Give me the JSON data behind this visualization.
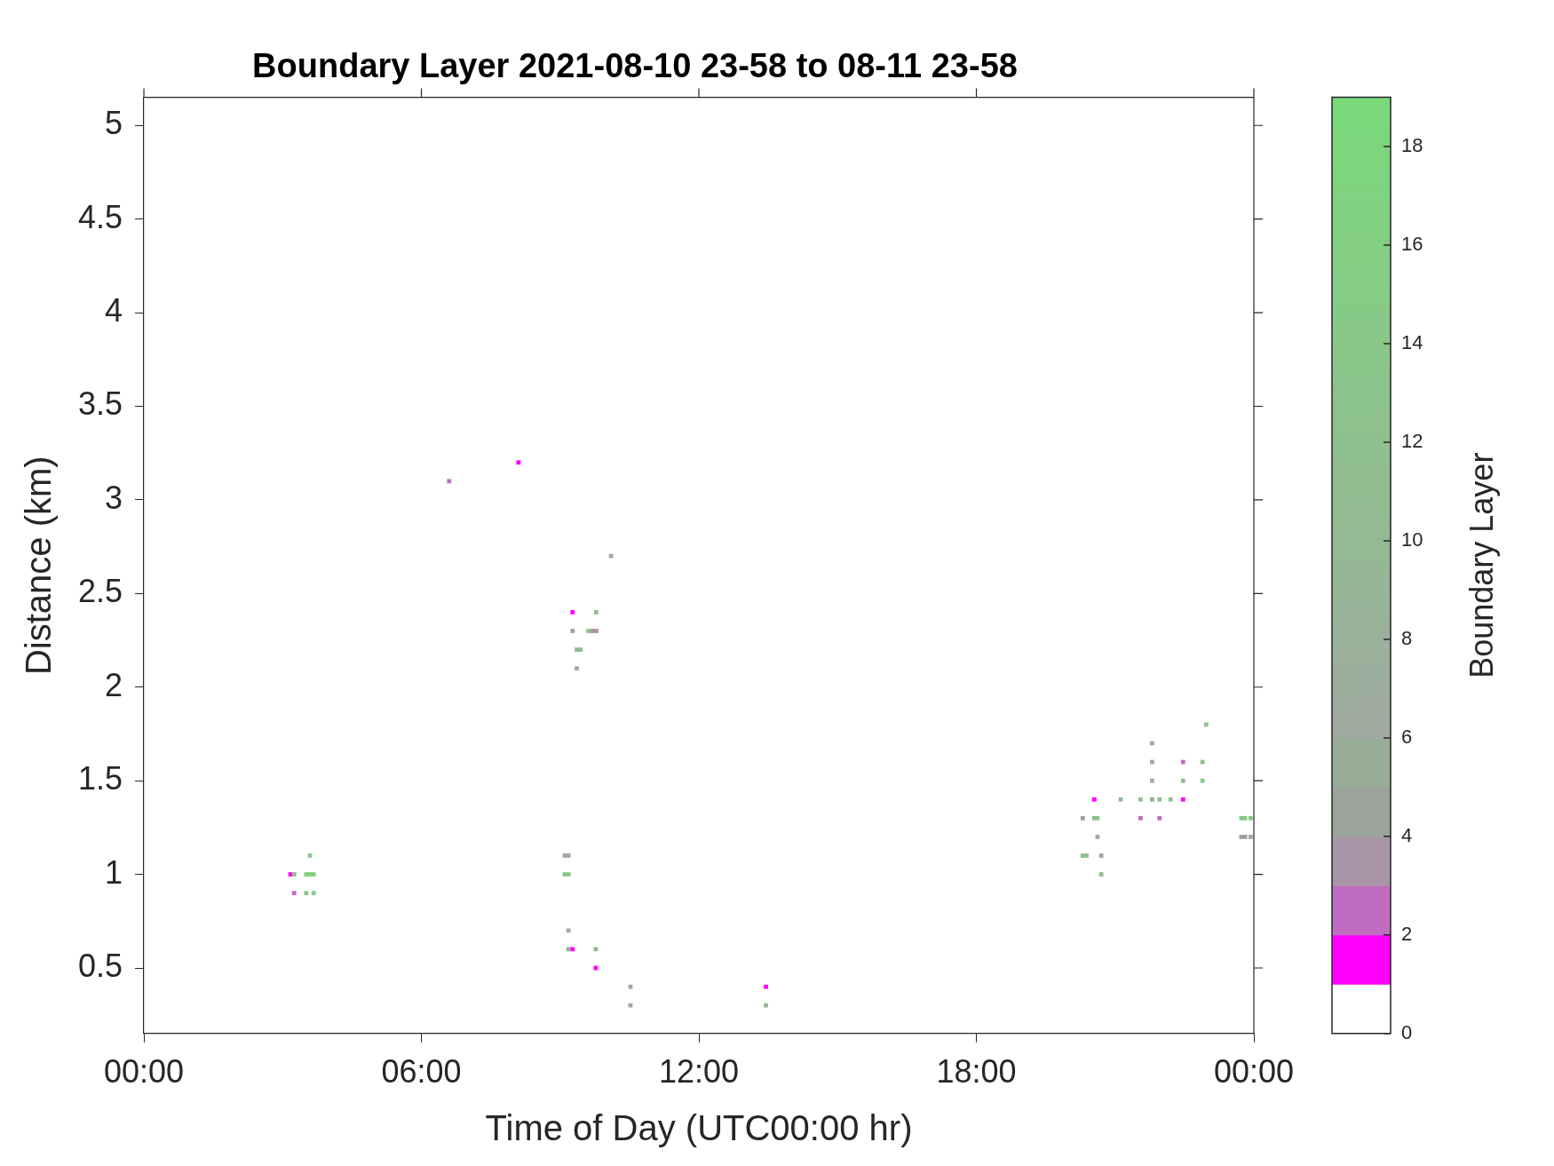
{
  "chart_data": {
    "type": "scatter",
    "title": "Boundary Layer 2021-08-10 23-58 to 08-11 23-58",
    "xlabel": "Time of Day (UTC00:00 hr)",
    "ylabel": "Distance (km)",
    "clabel": "Boundary Layer",
    "marker": "square",
    "grid": false,
    "legend": false,
    "xlim": [
      0,
      24
    ],
    "xticks": [
      {
        "value": 0,
        "label": "00:00"
      },
      {
        "value": 6,
        "label": "06:00"
      },
      {
        "value": 12,
        "label": "12:00"
      },
      {
        "value": 18,
        "label": "18:00"
      },
      {
        "value": 24,
        "label": "00:00"
      }
    ],
    "ylim": [
      0.15,
      5.15
    ],
    "yticks": [
      0.5,
      1,
      1.5,
      2,
      2.5,
      3,
      3.5,
      4,
      4.5,
      5
    ],
    "clim": [
      0,
      19
    ],
    "cticks": [
      0,
      2,
      4,
      6,
      8,
      10,
      12,
      14,
      16,
      18
    ],
    "series": [
      {
        "x": [
          3.17,
          3.25,
          3.25,
          3.51,
          3.51,
          3.59,
          3.59,
          3.67,
          3.67,
          6.6,
          8.1,
          10.1,
          9.27,
          9.27,
          9.36,
          9.44,
          9.36,
          9.61,
          9.7,
          9.78,
          9.78,
          9.1,
          9.18,
          9.1,
          9.18,
          9.18,
          9.18,
          9.27,
          9.77,
          9.77,
          10.52,
          10.52,
          13.45,
          13.45,
          20.3,
          20.3,
          20.38,
          20.55,
          20.55,
          20.62,
          20.62,
          20.7,
          20.7,
          21.12,
          21.55,
          21.55,
          21.8,
          21.8,
          21.8,
          21.8,
          21.96,
          21.96,
          22.2,
          22.47,
          22.47,
          22.47,
          22.89,
          22.89,
          22.97,
          23.73,
          23.73,
          23.81,
          23.81,
          23.93,
          23.93
        ],
        "values": [
          1.0,
          1.0,
          0.9,
          1.0,
          0.9,
          1.1,
          1.0,
          1.0,
          0.9,
          3.1,
          3.2,
          2.7,
          2.4,
          2.3,
          2.2,
          2.2,
          2.1,
          2.3,
          2.3,
          2.3,
          2.4,
          1.1,
          1.1,
          1.0,
          1.0,
          0.7,
          0.6,
          0.6,
          0.6,
          0.5,
          0.4,
          0.3,
          0.4,
          0.3,
          1.3,
          1.1,
          1.1,
          1.4,
          1.3,
          1.3,
          1.2,
          1.1,
          1.0,
          1.4,
          1.4,
          1.3,
          1.7,
          1.6,
          1.5,
          1.4,
          1.4,
          1.3,
          1.4,
          1.4,
          1.5,
          1.6,
          1.6,
          1.5,
          1.8,
          1.3,
          1.2,
          1.3,
          1.2,
          1.3,
          1.2
        ],
        "cvalues": [
          1.5,
          10,
          2.5,
          16,
          14,
          14,
          16,
          16,
          14,
          2.5,
          1.5,
          6,
          1.5,
          4.5,
          12,
          12,
          7,
          12,
          3.5,
          3.5,
          10,
          6,
          6,
          14,
          14,
          7,
          8,
          1.5,
          9,
          1.5,
          6,
          6,
          1.5,
          9,
          3.5,
          12,
          12,
          1.5,
          12,
          12,
          7,
          4.5,
          12,
          12,
          12,
          2.5,
          7,
          7,
          7,
          5.5,
          12,
          2.5,
          12,
          1.5,
          12,
          2.5,
          10,
          14,
          12,
          14,
          4.5,
          14,
          3.5,
          14,
          6
        ]
      }
    ]
  }
}
